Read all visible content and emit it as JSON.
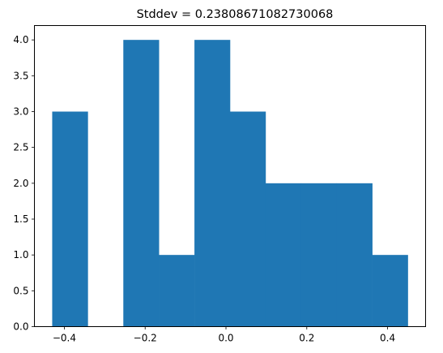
{
  "chart_data": {
    "type": "bar",
    "title": "Stddev = 0.23808671082730068",
    "xlabel": "",
    "ylabel": "",
    "xlim": [
      -0.474,
      0.494
    ],
    "ylim": [
      0,
      4.2
    ],
    "bins": [
      {
        "x0": -0.43,
        "x1": -0.342,
        "count": 3
      },
      {
        "x0": -0.342,
        "x1": -0.254,
        "count": 0
      },
      {
        "x0": -0.254,
        "x1": -0.166,
        "count": 4
      },
      {
        "x0": -0.166,
        "x1": -0.078,
        "count": 1
      },
      {
        "x0": -0.078,
        "x1": 0.01,
        "count": 4
      },
      {
        "x0": 0.01,
        "x1": 0.098,
        "count": 3
      },
      {
        "x0": 0.098,
        "x1": 0.186,
        "count": 2
      },
      {
        "x0": 0.186,
        "x1": 0.274,
        "count": 2
      },
      {
        "x0": 0.274,
        "x1": 0.362,
        "count": 2
      },
      {
        "x0": 0.362,
        "x1": 0.45,
        "count": 1
      }
    ],
    "x_ticks": [
      {
        "value": -0.4,
        "label": "−0.4"
      },
      {
        "value": -0.2,
        "label": "−0.2"
      },
      {
        "value": 0.0,
        "label": "0.0"
      },
      {
        "value": 0.2,
        "label": "0.2"
      },
      {
        "value": 0.4,
        "label": "0.4"
      }
    ],
    "y_ticks": [
      {
        "value": 0.0,
        "label": "0.0"
      },
      {
        "value": 0.5,
        "label": "0.5"
      },
      {
        "value": 1.0,
        "label": "1.0"
      },
      {
        "value": 1.5,
        "label": "1.5"
      },
      {
        "value": 2.0,
        "label": "2.0"
      },
      {
        "value": 2.5,
        "label": "2.5"
      },
      {
        "value": 3.0,
        "label": "3.0"
      },
      {
        "value": 3.5,
        "label": "3.5"
      },
      {
        "value": 4.0,
        "label": "4.0"
      }
    ],
    "bar_color": "#1f77b4",
    "grid": false,
    "legend": "none"
  }
}
